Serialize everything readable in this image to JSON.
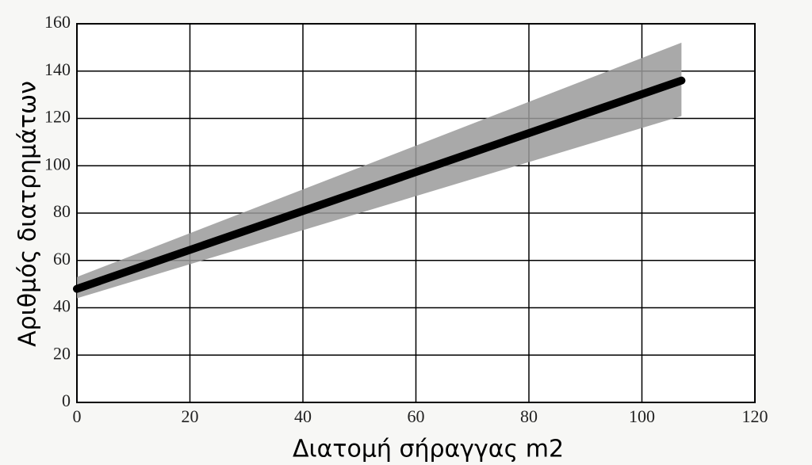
{
  "chart_data": {
    "type": "line",
    "x_label": "Διατομή σήραγγας m2",
    "y_label": "Αριθμός διατρημάτων",
    "x": [
      0,
      107
    ],
    "values": [
      48,
      136
    ],
    "band_low": [
      44,
      121
    ],
    "band_high": [
      53,
      152
    ],
    "color": "#000000",
    "band_color": "#9a9a9a",
    "xlim": [
      0,
      120
    ],
    "xticks": [
      0,
      20,
      40,
      60,
      80,
      100,
      120
    ],
    "ylim": [
      0,
      160
    ],
    "yticks": [
      0,
      20,
      40,
      60,
      80,
      100,
      120,
      140,
      160
    ],
    "grid": true
  }
}
